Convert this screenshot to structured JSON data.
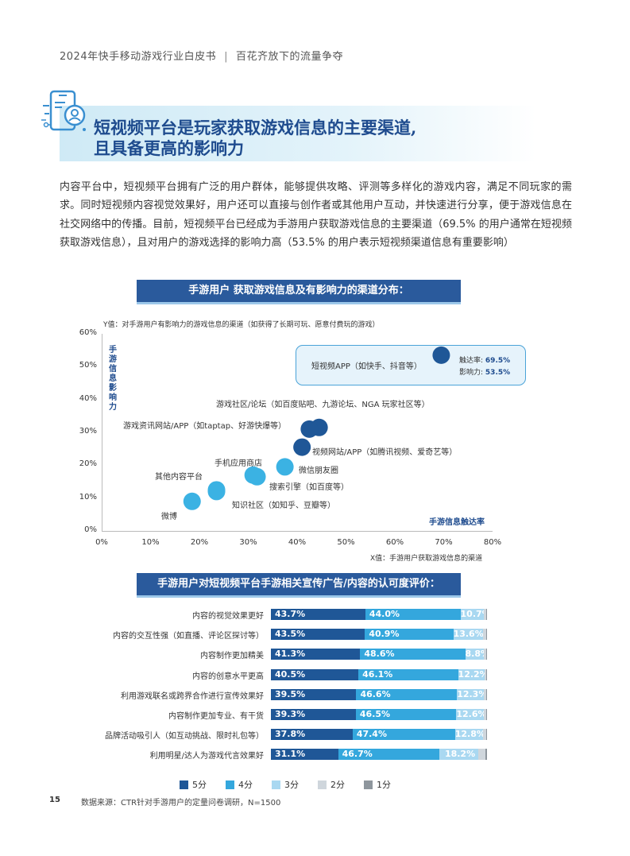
{
  "header": {
    "left": "2024年快手移动游戏行业白皮书",
    "divider": "|",
    "right": "百花齐放下的流量争夺"
  },
  "section": {
    "title_line1": "短视频平台是玩家获取游戏信息的主要渠道,",
    "title_line2": "且具备更高的影响力"
  },
  "intro": "内容平台中，短视频平台拥有广泛的用户群体，能够提供攻略、评测等多样化的游戏内容，满足不同玩家的需求。同时短视频内容视觉效果好，用户还可以直接与创作者或其他用户互动，并快速进行分享，便于游戏信息在社交网络中的传播。目前，短视频平台已经成为手游用户获取游戏信息的主要渠道（69.5% 的用户通常在短视频获取游戏信息），且对用户的游戏选择的影响力高（53.5% 的用户表示短视频渠道信息有重要影响）",
  "chart1": {
    "banner": "手游用户 获取游戏信息及有影响力的渠道分布：",
    "y_note": "Y值：对手游用户有影响力的游戏信息的渠道（如获得了长期可玩、愿意付费玩的游戏）",
    "y_axis_label": "手游信息影响力",
    "x_axis_label": "手游信息触达率",
    "x_note": "X值：手游用户获取游戏信息的渠道",
    "y_ticks": [
      "60%",
      "50%",
      "40%",
      "30%",
      "20%",
      "10%",
      "0%"
    ],
    "x_ticks": [
      "0%",
      "10%",
      "20%",
      "30%",
      "40%",
      "50%",
      "60%",
      "70%",
      "80%"
    ],
    "callout": {
      "label": "短视频APP（如快手、抖音等）",
      "reach_label": "触达率:",
      "reach_value": "69.5%",
      "influence_label": "影响力:",
      "influence_value": "53.5%"
    },
    "point_labels": {
      "community": "游戏社区/论坛（如百度贴吧、九游论坛、NGA 玩家社区等）",
      "news": "游戏资讯网站/APP（如taptap、好游快爆等）",
      "video": "视频网站/APP（如腾讯视频、爱奇艺等）",
      "store": "手机应用商店",
      "wechat": "微信朋友圈",
      "other": "其他内容平台",
      "search": "搜索引擎（如百度等）",
      "zhihu": "知识社区（如知乎、豆瓣等）",
      "weibo": "微博"
    }
  },
  "chart_data": [
    {
      "type": "scatter",
      "title": "手游用户 获取游戏信息及有影响力的渠道分布：",
      "xlabel": "手游信息触达率",
      "ylabel": "手游信息影响力",
      "xlim": [
        0,
        80
      ],
      "ylim": [
        0,
        60
      ],
      "unit": "%",
      "points": [
        {
          "name": "短视频APP（如快手、抖音等）",
          "x": 69.5,
          "y": 53.5,
          "color": "#1f5797"
        },
        {
          "name": "游戏社区/论坛（如百度贴吧、九游论坛、NGA 玩家社区等）",
          "x": 44.5,
          "y": 31.5,
          "color": "#1f5797"
        },
        {
          "name": "游戏资讯网站/APP（如taptap、好游快爆等）",
          "x": 42.5,
          "y": 31,
          "color": "#1f5797"
        },
        {
          "name": "视频网站/APP（如腾讯视频、爱奇艺等）",
          "x": 41,
          "y": 25.5,
          "color": "#1f5797"
        },
        {
          "name": "微信朋友圈",
          "x": 37.5,
          "y": 19.5,
          "color": "#3bb2e3"
        },
        {
          "name": "手机应用商店",
          "x": 31,
          "y": 17,
          "color": "#3bb2e3"
        },
        {
          "name": "搜索引擎（如百度等）",
          "x": 31.8,
          "y": 16.5,
          "color": "#3bb2e3"
        },
        {
          "name": "其他内容平台",
          "x": 23.5,
          "y": 12.5,
          "color": "#3bb2e3"
        },
        {
          "name": "知识社区（如知乎、豆瓣等）",
          "x": 23.5,
          "y": 12,
          "color": "#3bb2e3"
        },
        {
          "name": "微博",
          "x": 18.5,
          "y": 9,
          "color": "#3bb2e3"
        }
      ]
    },
    {
      "type": "bar",
      "orientation": "horizontal-stacked",
      "title": "手游用户对短视频平台手游相关宣传广告/内容的认可度评价：",
      "categories": [
        "内容的视觉效果更好",
        "内容的交互性强（如直播、评论区探讨等）",
        "内容制作更加精美",
        "内容的创意水平更高",
        "利用游戏联名或跨界合作进行宣传效果好",
        "内容制作更加专业、有干货",
        "品牌活动吸引人（如互动挑战、限时礼包等）",
        "利用明星/达人为游戏代言效果好"
      ],
      "series": [
        {
          "name": "5分",
          "color": "#1f5797",
          "values": [
            43.7,
            43.5,
            41.3,
            40.5,
            39.5,
            39.3,
            37.8,
            31.1
          ]
        },
        {
          "name": "4分",
          "color": "#34a7dd",
          "values": [
            44.0,
            40.9,
            48.6,
            46.1,
            46.6,
            46.5,
            47.4,
            46.7
          ]
        },
        {
          "name": "3分",
          "color": "#a9d8f1",
          "values": [
            10.7,
            13.6,
            8.8,
            12.2,
            12.3,
            12.6,
            12.8,
            18.2
          ]
        },
        {
          "name": "2分",
          "color": "#cfd6dc",
          "values": [
            1.3,
            1.7,
            1.0,
            1.0,
            1.3,
            1.4,
            1.6,
            3.2
          ]
        },
        {
          "name": "1分",
          "color": "#8e969d",
          "values": [
            0.3,
            0.3,
            0.3,
            0.2,
            0.3,
            0.2,
            0.4,
            0.8
          ]
        }
      ],
      "xlim": [
        0,
        100
      ],
      "unit": "%"
    }
  ],
  "chart2": {
    "banner": "手游用户对短视频平台手游相关宣传广告/内容的认可度评价："
  },
  "footer": {
    "page": "15",
    "source": "数据来源：CTR针对手游用户的定量问卷调研，N=1500"
  },
  "icon": {
    "name": "mobile-user-icon",
    "color": "#3a8fd0"
  }
}
